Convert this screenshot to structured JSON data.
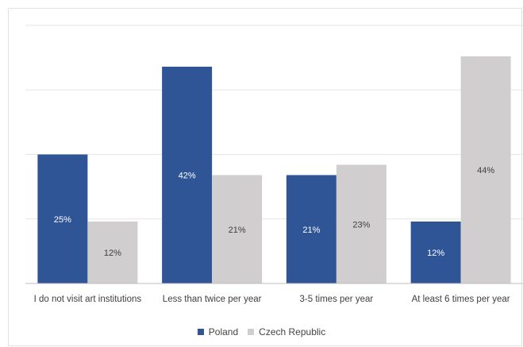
{
  "chart_data": {
    "type": "bar",
    "categories": [
      "I do not visit art institutions",
      "Less than twice per year",
      "3-5 times per year",
      "At least 6 times per year"
    ],
    "series": [
      {
        "name": "Poland",
        "values": [
          25,
          42,
          21,
          12
        ],
        "labels": [
          "25%",
          "42%",
          "21%",
          "12%"
        ],
        "color": "#2f5597"
      },
      {
        "name": "Czech Republic",
        "values": [
          12,
          21,
          23,
          44
        ],
        "labels": [
          "12%",
          "21%",
          "23%",
          "44%"
        ],
        "color": "#d0cece"
      }
    ],
    "title": "",
    "xlabel": "",
    "ylabel": "",
    "ylim": [
      0,
      50
    ],
    "grid": true,
    "legend_position": "bottom"
  }
}
